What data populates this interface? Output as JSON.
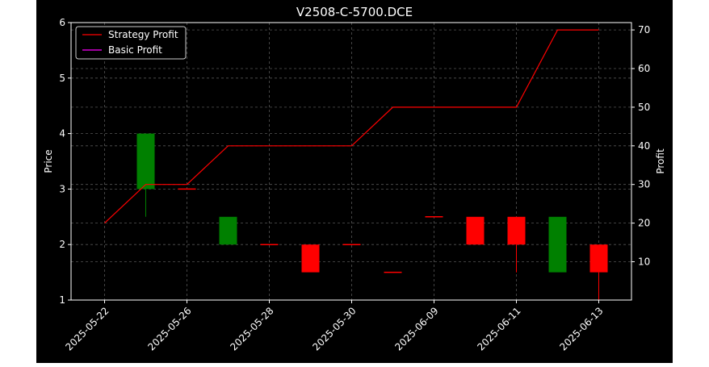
{
  "chart_data": {
    "type": "candlestick",
    "title": "V2508-C-5700.DCE",
    "ylabel_left": "Price",
    "ylabel_right": "Profit",
    "grid": true,
    "legend_placement": "top-left",
    "legend": [
      "Strategy Profit",
      "Basic Profit"
    ],
    "x_tick_labels": [
      "2025-05-22",
      "2025-05-26",
      "2025-05-28",
      "2025-05-30",
      "2025-06-09",
      "2025-06-11",
      "2025-06-13"
    ],
    "ylim_price": [
      1,
      6
    ],
    "yticks_price": [
      1,
      2,
      3,
      4,
      5,
      6
    ],
    "ylim_profit": [
      0,
      70
    ],
    "yticks_profit": [
      10,
      20,
      30,
      40,
      50,
      60,
      70
    ],
    "candles": [
      {
        "x": 1,
        "open": 3.0,
        "close": 4.0,
        "high": 4.0,
        "low": 2.5
      },
      {
        "x": 2,
        "open": 3.0,
        "close": 3.0,
        "high": 3.0,
        "low": 3.0
      },
      {
        "x": 3,
        "open": 2.0,
        "close": 2.5,
        "high": 2.5,
        "low": 2.0
      },
      {
        "x": 4,
        "open": 2.0,
        "close": 2.0,
        "high": 2.0,
        "low": 2.0
      },
      {
        "x": 5,
        "open": 2.0,
        "close": 1.5,
        "high": 2.0,
        "low": 1.5
      },
      {
        "x": 6,
        "open": 2.0,
        "close": 2.0,
        "high": 2.0,
        "low": 2.0
      },
      {
        "x": 7,
        "open": 1.5,
        "close": 1.5,
        "high": 1.5,
        "low": 1.5
      },
      {
        "x": 8,
        "open": 2.5,
        "close": 2.5,
        "high": 2.5,
        "low": 2.5
      },
      {
        "x": 9,
        "open": 2.5,
        "close": 2.0,
        "high": 2.5,
        "low": 2.0
      },
      {
        "x": 10,
        "open": 2.5,
        "close": 2.0,
        "high": 2.5,
        "low": 1.5
      },
      {
        "x": 11,
        "open": 1.5,
        "close": 2.5,
        "high": 2.5,
        "low": 1.5
      },
      {
        "x": 12,
        "open": 2.0,
        "close": 1.5,
        "high": 2.0,
        "low": 1.0
      }
    ],
    "series": [
      {
        "name": "Strategy Profit",
        "color": "#ff0000",
        "x": [
          0,
          1,
          2,
          3,
          4,
          5,
          6,
          7,
          8,
          9,
          10,
          11,
          12
        ],
        "values": [
          20,
          30,
          30,
          40,
          40,
          40,
          40,
          50,
          50,
          50,
          50,
          70,
          70
        ]
      },
      {
        "name": "Basic Profit",
        "color": "#ff00ff",
        "x": [],
        "values": []
      }
    ],
    "colors": {
      "up": "#008000",
      "down": "#ff0000",
      "background": "#000000",
      "foreground": "#ffffff",
      "grid": "#555555"
    }
  }
}
